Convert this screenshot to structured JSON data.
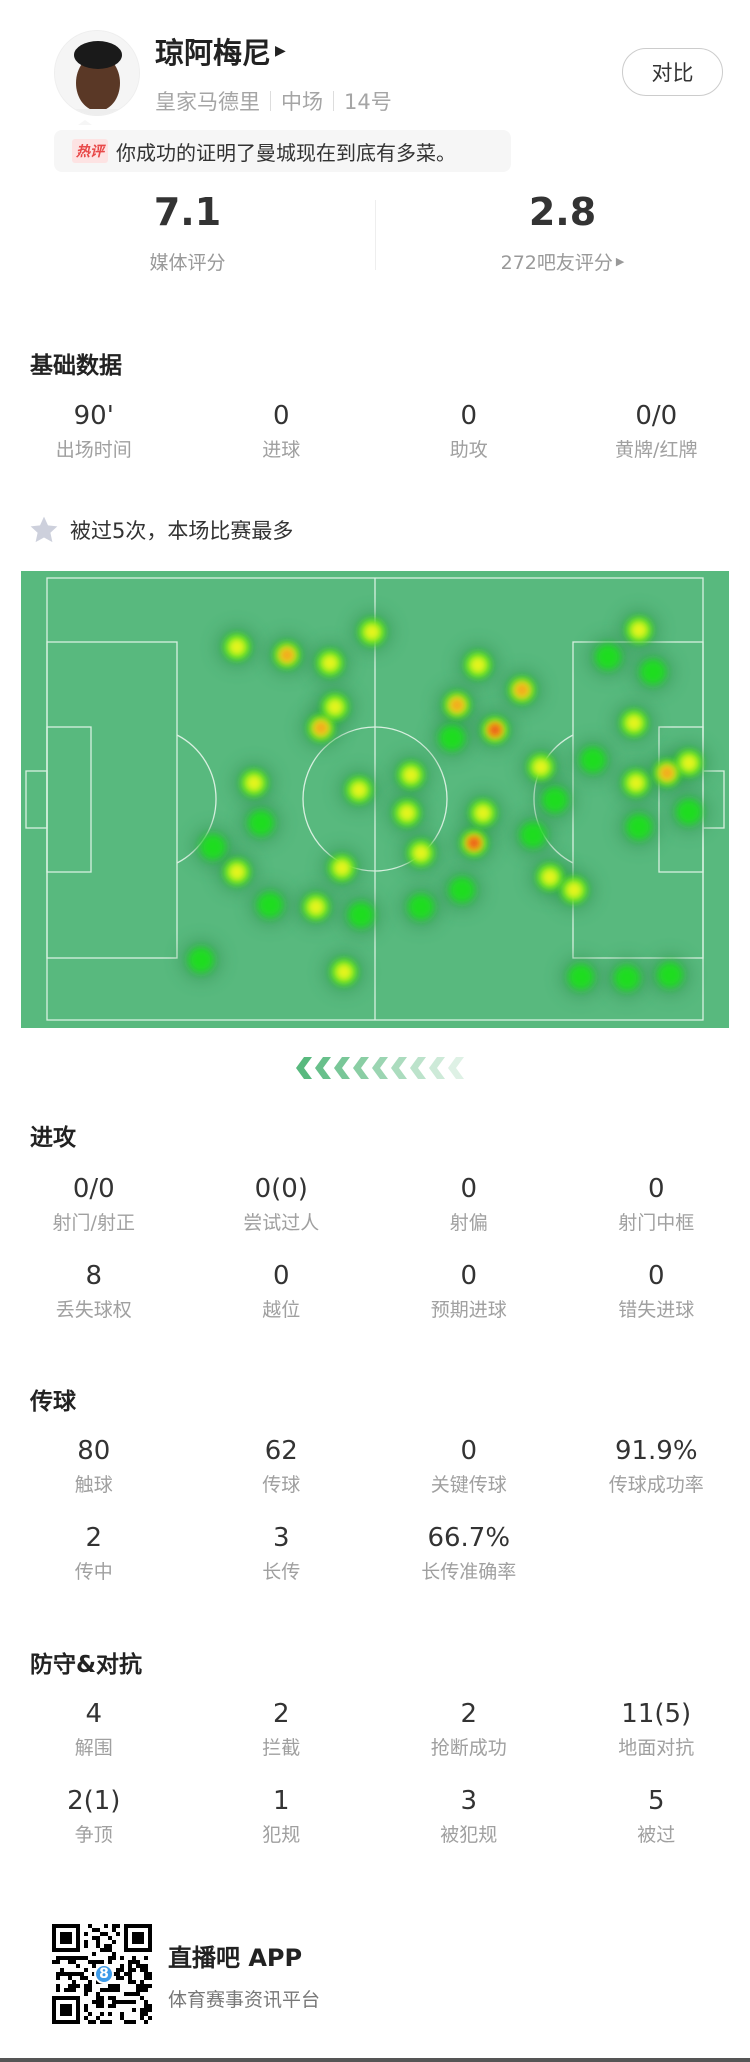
{
  "player": {
    "name": "琼阿梅尼",
    "team": "皇家马德里",
    "position": "中场",
    "number": "14号",
    "compare_label": "对比"
  },
  "hot_comment": {
    "badge": "热评",
    "text": "你成功的证明了曼城现在到底有多菜。"
  },
  "ratings": {
    "media": {
      "value": "7.1",
      "label": "媒体评分"
    },
    "fans": {
      "value": "2.8",
      "label": "272吧友评分"
    }
  },
  "basic": {
    "title": "基础数据",
    "stats": [
      {
        "value": "90'",
        "label": "出场时间"
      },
      {
        "value": "0",
        "label": "进球"
      },
      {
        "value": "0",
        "label": "助攻"
      },
      {
        "value": "0/0",
        "label": "黄牌/红牌"
      }
    ]
  },
  "highlight": {
    "text": "被过5次，本场比赛最多",
    "icon": "star-icon"
  },
  "heatmap": {
    "pitch_color": "#58b97e",
    "line_color": "#d8f0e0",
    "attack_direction": "left"
  },
  "attack": {
    "title": "进攻",
    "stats": [
      {
        "value": "0/0",
        "label": "射门/射正"
      },
      {
        "value": "0(0)",
        "label": "尝试过人"
      },
      {
        "value": "0",
        "label": "射偏"
      },
      {
        "value": "0",
        "label": "射门中框"
      },
      {
        "value": "8",
        "label": "丢失球权"
      },
      {
        "value": "0",
        "label": "越位"
      },
      {
        "value": "0",
        "label": "预期进球"
      },
      {
        "value": "0",
        "label": "错失进球"
      }
    ]
  },
  "passing": {
    "title": "传球",
    "stats": [
      {
        "value": "80",
        "label": "触球"
      },
      {
        "value": "62",
        "label": "传球"
      },
      {
        "value": "0",
        "label": "关键传球"
      },
      {
        "value": "91.9%",
        "label": "传球成功率"
      },
      {
        "value": "2",
        "label": "传中"
      },
      {
        "value": "3",
        "label": "长传"
      },
      {
        "value": "66.7%",
        "label": "长传准确率"
      }
    ]
  },
  "defense": {
    "title": "防守&对抗",
    "stats": [
      {
        "value": "4",
        "label": "解围"
      },
      {
        "value": "2",
        "label": "拦截"
      },
      {
        "value": "2",
        "label": "抢断成功"
      },
      {
        "value": "11(5)",
        "label": "地面对抗"
      },
      {
        "value": "2(1)",
        "label": "争顶"
      },
      {
        "value": "1",
        "label": "犯规"
      },
      {
        "value": "3",
        "label": "被犯规"
      },
      {
        "value": "5",
        "label": "被过"
      }
    ]
  },
  "footer": {
    "app_name": "直播吧 APP",
    "tagline": "体育赛事资讯平台",
    "qr_badge": "8"
  }
}
